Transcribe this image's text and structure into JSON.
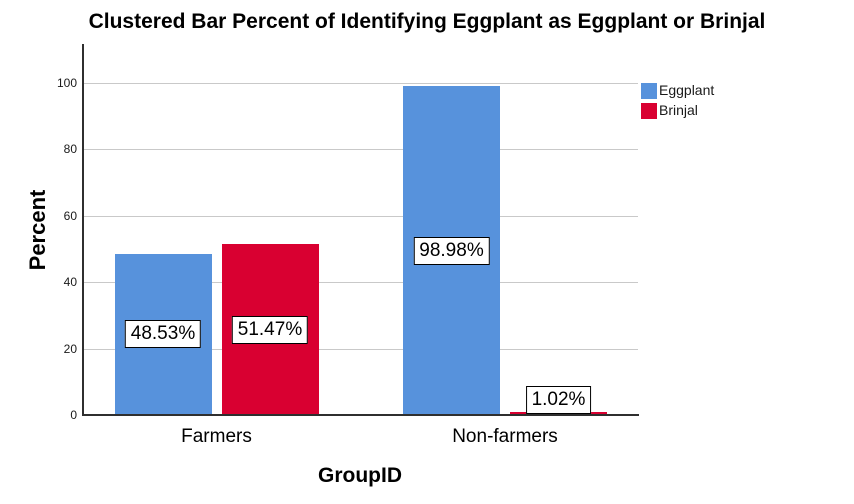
{
  "title": "Clustered Bar Percent of Identifying Eggplant as Eggplant or Brinjal",
  "chart_data": {
    "type": "bar",
    "clustered": true,
    "title": "Clustered Bar Percent of Identifying Eggplant as Eggplant or Brinjal",
    "categories": [
      "Farmers",
      "Non-farmers"
    ],
    "series": [
      {
        "name": "Eggplant",
        "color": "#5792DC",
        "values": [
          48.53,
          98.98
        ],
        "labels": [
          "48.53%",
          "98.98%"
        ]
      },
      {
        "name": "Brinjal",
        "color": "#D90031",
        "values": [
          51.47,
          1.02
        ],
        "labels": [
          "51.47%",
          "1.02%"
        ]
      }
    ],
    "xlabel": "GroupID",
    "ylabel": "Percent",
    "ylim": [
      0,
      100
    ],
    "yticks": [
      0,
      20,
      40,
      60,
      80,
      100
    ],
    "grid": "horizontal",
    "gridline_color": "#c9c9c9",
    "axis_color": "#2f2f2f",
    "legend_position": "top-right-outside",
    "value_label_style": "boxed-white-black-border"
  }
}
